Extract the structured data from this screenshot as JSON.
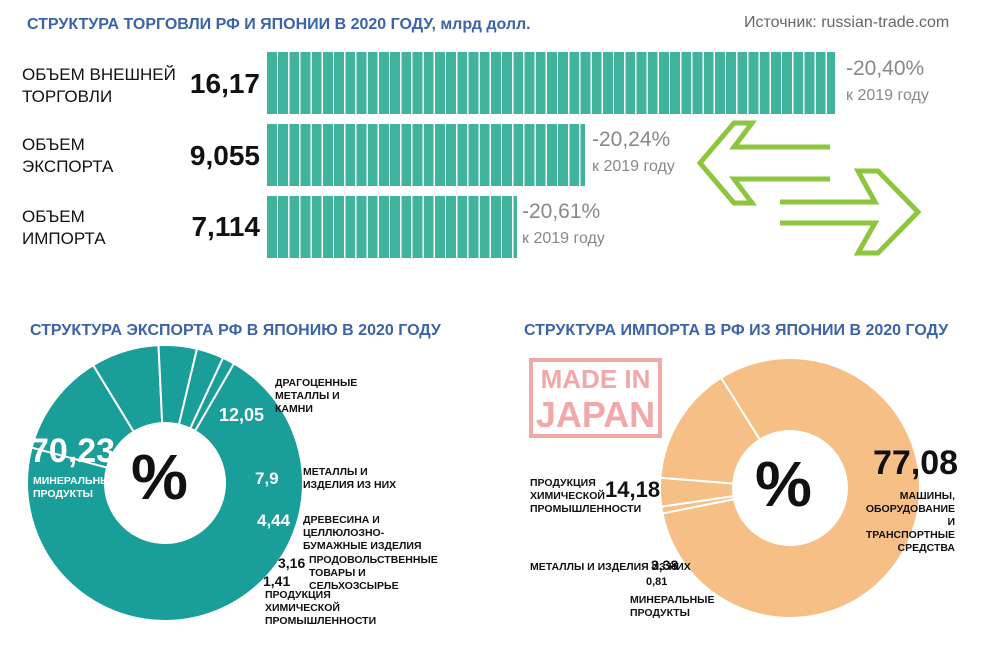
{
  "header": {
    "title": "СТРУКТУРА ТОРГОВЛИ РФ И ЯПОНИИ В 2020 ГОДУ, млрд долл.",
    "source": "Источник: russian-trade.com"
  },
  "colors": {
    "teal": "#3fb39c",
    "teal_dark": "#1a9e99",
    "peach": "#f5bf85",
    "green_arrow": "#8cc63f",
    "stamp": "#f0a8a8",
    "title_blue": "#3a63a8"
  },
  "trade": {
    "rows": [
      {
        "label": "Объем внешней торговли",
        "value": "16,17",
        "change": "-20,40%",
        "note": "к 2019 году"
      },
      {
        "label": "Объем экспорта",
        "value": "9,055",
        "change": "-20,24%",
        "note": "к 2019 году"
      },
      {
        "label": "Объем импорта",
        "value": "7,114",
        "change": "-20,61%",
        "note": "к 2019 году"
      }
    ]
  },
  "export_title": "СТРУКТУРА ЭКСПОРТА РФ В ЯПОНИЮ В 2020 ГОДУ",
  "import_title": "СТРУКТУРА ИМПОРТА В РФ ИЗ ЯПОНИИ В 2020 ГОДУ",
  "percent_sign": "%",
  "stamp": {
    "line1": "MADE IN",
    "line2": "JAPAN"
  },
  "chart_data": [
    {
      "type": "bar",
      "categories": [
        "Объем внешней торговли",
        "Объем экспорта",
        "Объем импорта"
      ],
      "values": [
        16.17,
        9.055,
        7.114
      ],
      "title": "СТРУКТУРА ТОРГОВЛИ РФ И ЯПОНИИ В 2020 ГОДУ, млрд долл.",
      "changes": [
        "-20,40%",
        "-20,24%",
        "-20,61%"
      ]
    },
    {
      "type": "pie",
      "title": "СТРУКТУРА ЭКСПОРТА РФ В ЯПОНИЮ В 2020 ГОДУ",
      "slices": [
        {
          "label": "Минеральные продукты",
          "value": 70.23,
          "value_text": "70,23"
        },
        {
          "label": "Драгоценные металлы и камни",
          "value": 12.05,
          "value_text": "12,05"
        },
        {
          "label": "Металлы и изделия из них",
          "value": 7.9,
          "value_text": "7,9"
        },
        {
          "label": "Древесина и целлюлозно-бумажные изделия",
          "value": 4.44,
          "value_text": "4,44"
        },
        {
          "label": "Продовольственные товары и сельхозсырье",
          "value": 3.16,
          "value_text": "3,16"
        },
        {
          "label": "Продукция химической промышленности",
          "value": 1.41,
          "value_text": "1,41"
        }
      ]
    },
    {
      "type": "pie",
      "title": "СТРУКТУРА ИМПОРТА В РФ ИЗ ЯПОНИИ В 2020 ГОДУ",
      "slices": [
        {
          "label": "Машины, оборудование и транспортные средства",
          "value": 77.08,
          "value_text": "77,08"
        },
        {
          "label": "Продукция химической промышленности",
          "value": 14.18,
          "value_text": "14,18"
        },
        {
          "label": "Металлы и изделия из них",
          "value": 3.38,
          "value_text": "3,38"
        },
        {
          "label": "Минеральные продукты",
          "value": 0.81,
          "value_text": "0,81"
        }
      ]
    }
  ]
}
